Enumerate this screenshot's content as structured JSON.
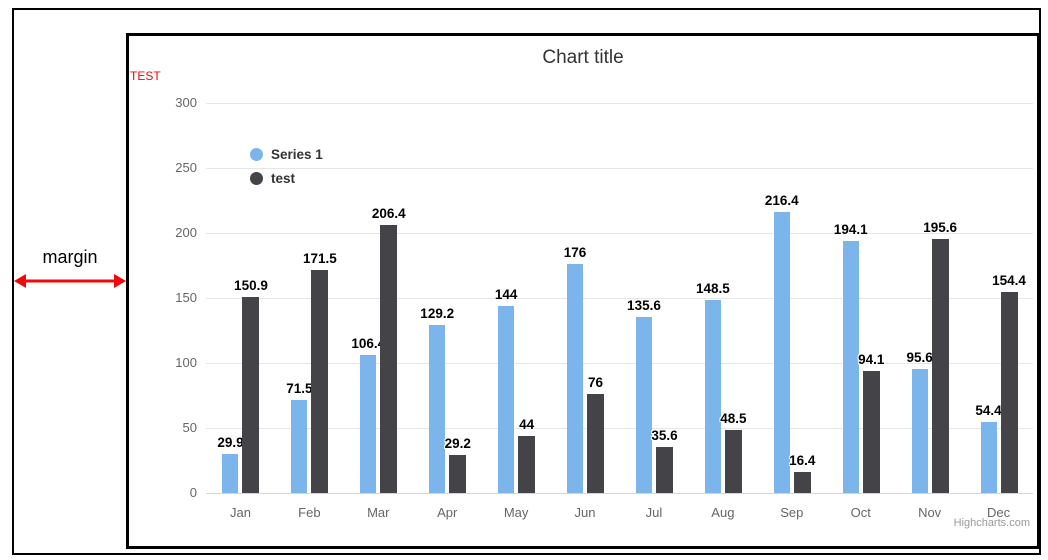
{
  "page": {
    "margin_label": "margin",
    "annotation_arrow_color": "#ee0a0a"
  },
  "chart": {
    "title": "Chart title",
    "y_axis_title": "TEST",
    "credits": "Highcharts.com"
  },
  "chart_data": {
    "type": "bar",
    "title": "Chart title",
    "categories": [
      "Jan",
      "Feb",
      "Mar",
      "Apr",
      "May",
      "Jun",
      "Jul",
      "Aug",
      "Sep",
      "Oct",
      "Nov",
      "Dec"
    ],
    "series": [
      {
        "name": "Series 1",
        "color": "#7cb5ec",
        "values": [
          29.9,
          71.5,
          106.4,
          129.2,
          144,
          176,
          135.6,
          148.5,
          216.4,
          194.1,
          95.6,
          54.4
        ]
      },
      {
        "name": "test",
        "color": "#434348",
        "values": [
          150.9,
          171.5,
          206.4,
          29.2,
          44,
          76,
          35.6,
          48.5,
          16.4,
          94.1,
          195.6,
          154.4
        ]
      }
    ],
    "xlabel": "",
    "ylabel": "TEST",
    "ylabel_color": "#ff0000",
    "ylim": [
      0,
      300
    ],
    "y_ticks": [
      0,
      50,
      100,
      150,
      200,
      250,
      300
    ],
    "grid": true,
    "legend_position": "inside-top-left",
    "data_labels": true,
    "colors": {
      "grid_line": "#e6e6e6",
      "axis_line": "#ccd6eb",
      "axis_labels": "#666666",
      "title_text": "#333333",
      "data_label_text": "#000000",
      "legend_text": "#333333",
      "credits_text": "#999999"
    }
  }
}
